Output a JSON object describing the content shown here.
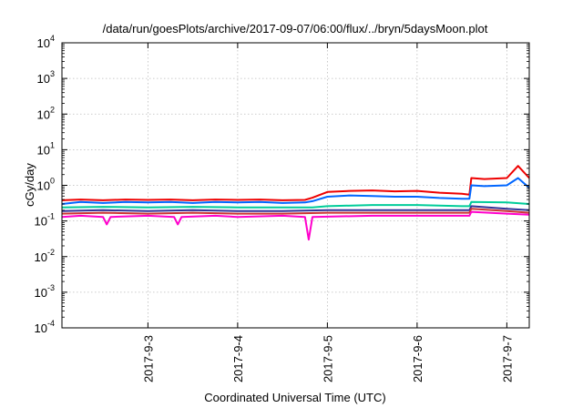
{
  "chart_data": {
    "type": "line",
    "title": "/data/run/goesPlots/archive/2017-09-07/06:00/flux/../bryn/5daysMoon.plot",
    "xlabel": "Coordinated Universal Time (UTC)",
    "ylabel": "cGy/day",
    "yscale": "log",
    "ylim": [
      0.0001,
      10000
    ],
    "y_ticks": [
      {
        "base": "10",
        "exp": "-4",
        "value": 0.0001
      },
      {
        "base": "10",
        "exp": "-3",
        "value": 0.001
      },
      {
        "base": "10",
        "exp": "-2",
        "value": 0.01
      },
      {
        "base": "10",
        "exp": "-1",
        "value": 0.1
      },
      {
        "base": "10",
        "exp": "0",
        "value": 1
      },
      {
        "base": "10",
        "exp": "1",
        "value": 10
      },
      {
        "base": "10",
        "exp": "2",
        "value": 100
      },
      {
        "base": "10",
        "exp": "3",
        "value": 1000
      },
      {
        "base": "10",
        "exp": "4",
        "value": 10000
      }
    ],
    "xlim": [
      "2017-09-02 01:00",
      "2017-09-07 06:00"
    ],
    "x_ticks": [
      {
        "label": "2017-9-3",
        "date": "2017-09-03"
      },
      {
        "label": "2017-9-4",
        "date": "2017-09-04"
      },
      {
        "label": "2017-9-5",
        "date": "2017-09-05"
      },
      {
        "label": "2017-9-6",
        "date": "2017-09-06"
      },
      {
        "label": "2017-9-7",
        "date": "2017-09-07"
      }
    ],
    "grid": true,
    "legend": "none",
    "series": [
      {
        "color": "#ee0000",
        "points": [
          [
            "2017-09-02 01:00",
            0.38
          ],
          [
            "2017-09-02 06:00",
            0.4
          ],
          [
            "2017-09-02 12:00",
            0.38
          ],
          [
            "2017-09-02 18:00",
            0.4
          ],
          [
            "2017-09-03 00:00",
            0.39
          ],
          [
            "2017-09-03 06:00",
            0.4
          ],
          [
            "2017-09-03 12:00",
            0.38
          ],
          [
            "2017-09-03 18:00",
            0.4
          ],
          [
            "2017-09-04 00:00",
            0.39
          ],
          [
            "2017-09-04 06:00",
            0.4
          ],
          [
            "2017-09-04 12:00",
            0.38
          ],
          [
            "2017-09-04 18:00",
            0.39
          ],
          [
            "2017-09-04 20:00",
            0.45
          ],
          [
            "2017-09-05 00:00",
            0.65
          ],
          [
            "2017-09-05 06:00",
            0.7
          ],
          [
            "2017-09-05 12:00",
            0.72
          ],
          [
            "2017-09-05 18:00",
            0.68
          ],
          [
            "2017-09-06 00:00",
            0.7
          ],
          [
            "2017-09-06 06:00",
            0.62
          ],
          [
            "2017-09-06 12:00",
            0.58
          ],
          [
            "2017-09-06 14:00",
            0.55
          ],
          [
            "2017-09-06 14:30",
            1.6
          ],
          [
            "2017-09-06 18:00",
            1.5
          ],
          [
            "2017-09-07 00:00",
            1.6
          ],
          [
            "2017-09-07 03:00",
            3.5
          ],
          [
            "2017-09-07 06:00",
            1.6
          ]
        ]
      },
      {
        "color": "#0066ff",
        "points": [
          [
            "2017-09-02 01:00",
            0.3
          ],
          [
            "2017-09-02 06:00",
            0.34
          ],
          [
            "2017-09-02 12:00",
            0.32
          ],
          [
            "2017-09-02 18:00",
            0.34
          ],
          [
            "2017-09-03 00:00",
            0.33
          ],
          [
            "2017-09-03 06:00",
            0.34
          ],
          [
            "2017-09-03 12:00",
            0.32
          ],
          [
            "2017-09-03 18:00",
            0.34
          ],
          [
            "2017-09-04 00:00",
            0.33
          ],
          [
            "2017-09-04 06:00",
            0.34
          ],
          [
            "2017-09-04 12:00",
            0.32
          ],
          [
            "2017-09-04 18:00",
            0.33
          ],
          [
            "2017-09-04 20:00",
            0.36
          ],
          [
            "2017-09-05 00:00",
            0.48
          ],
          [
            "2017-09-05 06:00",
            0.52
          ],
          [
            "2017-09-05 12:00",
            0.5
          ],
          [
            "2017-09-05 18:00",
            0.48
          ],
          [
            "2017-09-06 00:00",
            0.48
          ],
          [
            "2017-09-06 06:00",
            0.44
          ],
          [
            "2017-09-06 12:00",
            0.42
          ],
          [
            "2017-09-06 14:00",
            0.42
          ],
          [
            "2017-09-06 14:30",
            1.0
          ],
          [
            "2017-09-06 18:00",
            0.95
          ],
          [
            "2017-09-07 00:00",
            1.0
          ],
          [
            "2017-09-07 03:00",
            1.6
          ],
          [
            "2017-09-07 06:00",
            0.85
          ]
        ]
      },
      {
        "color": "#00cc99",
        "points": [
          [
            "2017-09-02 01:00",
            0.24
          ],
          [
            "2017-09-02 12:00",
            0.25
          ],
          [
            "2017-09-03 00:00",
            0.24
          ],
          [
            "2017-09-03 12:00",
            0.25
          ],
          [
            "2017-09-04 00:00",
            0.24
          ],
          [
            "2017-09-04 12:00",
            0.24
          ],
          [
            "2017-09-04 20:00",
            0.24
          ],
          [
            "2017-09-05 00:00",
            0.26
          ],
          [
            "2017-09-05 12:00",
            0.28
          ],
          [
            "2017-09-06 00:00",
            0.28
          ],
          [
            "2017-09-06 12:00",
            0.26
          ],
          [
            "2017-09-06 14:00",
            0.26
          ],
          [
            "2017-09-06 14:30",
            0.34
          ],
          [
            "2017-09-07 00:00",
            0.33
          ],
          [
            "2017-09-07 06:00",
            0.3
          ]
        ]
      },
      {
        "color": "#333399",
        "points": [
          [
            "2017-09-02 01:00",
            0.19
          ],
          [
            "2017-09-02 12:00",
            0.2
          ],
          [
            "2017-09-03 00:00",
            0.19
          ],
          [
            "2017-09-03 12:00",
            0.2
          ],
          [
            "2017-09-04 00:00",
            0.19
          ],
          [
            "2017-09-04 12:00",
            0.19
          ],
          [
            "2017-09-05 00:00",
            0.2
          ],
          [
            "2017-09-05 12:00",
            0.2
          ],
          [
            "2017-09-06 00:00",
            0.2
          ],
          [
            "2017-09-06 14:00",
            0.2
          ],
          [
            "2017-09-06 14:30",
            0.26
          ],
          [
            "2017-09-07 00:00",
            0.22
          ],
          [
            "2017-09-07 06:00",
            0.2
          ]
        ]
      },
      {
        "color": "#cc3333",
        "points": [
          [
            "2017-09-02 01:00",
            0.16
          ],
          [
            "2017-09-02 12:00",
            0.17
          ],
          [
            "2017-09-03 00:00",
            0.16
          ],
          [
            "2017-09-03 12:00",
            0.17
          ],
          [
            "2017-09-04 00:00",
            0.16
          ],
          [
            "2017-09-04 12:00",
            0.16
          ],
          [
            "2017-09-05 00:00",
            0.17
          ],
          [
            "2017-09-05 12:00",
            0.17
          ],
          [
            "2017-09-06 00:00",
            0.17
          ],
          [
            "2017-09-06 14:00",
            0.17
          ],
          [
            "2017-09-06 14:30",
            0.22
          ],
          [
            "2017-09-07 00:00",
            0.19
          ],
          [
            "2017-09-07 06:00",
            0.17
          ]
        ]
      },
      {
        "color": "#ff00cc",
        "points": [
          [
            "2017-09-02 01:00",
            0.13
          ],
          [
            "2017-09-02 06:00",
            0.14
          ],
          [
            "2017-09-02 12:00",
            0.13
          ],
          [
            "2017-09-02 13:00",
            0.08
          ],
          [
            "2017-09-02 14:00",
            0.13
          ],
          [
            "2017-09-03 00:00",
            0.14
          ],
          [
            "2017-09-03 07:00",
            0.13
          ],
          [
            "2017-09-03 08:00",
            0.08
          ],
          [
            "2017-09-03 09:00",
            0.13
          ],
          [
            "2017-09-03 18:00",
            0.14
          ],
          [
            "2017-09-04 00:00",
            0.13
          ],
          [
            "2017-09-04 12:00",
            0.14
          ],
          [
            "2017-09-04 18:00",
            0.13
          ],
          [
            "2017-09-04 19:00",
            0.03
          ],
          [
            "2017-09-04 20:00",
            0.13
          ],
          [
            "2017-09-05 12:00",
            0.14
          ],
          [
            "2017-09-06 00:00",
            0.14
          ],
          [
            "2017-09-06 14:00",
            0.14
          ],
          [
            "2017-09-06 14:30",
            0.18
          ],
          [
            "2017-09-07 00:00",
            0.16
          ],
          [
            "2017-09-07 06:00",
            0.15
          ]
        ]
      }
    ]
  }
}
